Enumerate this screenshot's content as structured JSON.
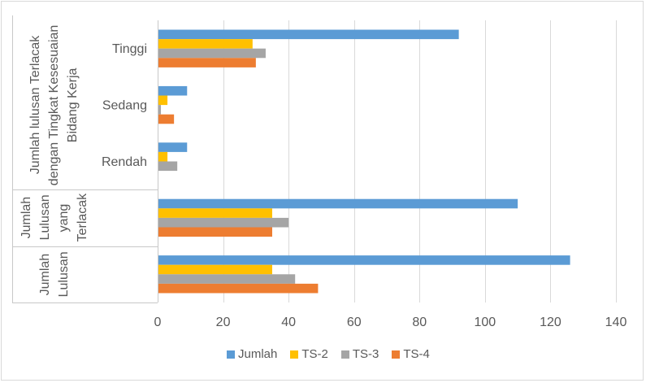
{
  "chart_data": {
    "type": "bar",
    "orientation": "horizontal",
    "category_groups": [
      {
        "label": "Jumlah lulusan Terlacak dengan Tingkat Kesesuaian Bidang Kerja",
        "categories": [
          "Tinggi",
          "Sedang",
          "Rendah"
        ]
      },
      {
        "label": "Jumlah Lulusan yang Terlacak"
      },
      {
        "label": "Jumlah Lulusan"
      }
    ],
    "series": [
      {
        "name": "Jumlah",
        "color": "#5B9BD5",
        "values": [
          92,
          9,
          9,
          110,
          126
        ]
      },
      {
        "name": "TS-2",
        "color": "#FFC000",
        "values": [
          29,
          3,
          3,
          35,
          35
        ]
      },
      {
        "name": "TS-3",
        "color": "#A5A5A5",
        "values": [
          33,
          1,
          6,
          40,
          42
        ]
      },
      {
        "name": "TS-4",
        "color": "#ED7D31",
        "values": [
          30,
          5,
          0,
          35,
          49
        ]
      }
    ],
    "x_axis": {
      "min": 0,
      "max": 140,
      "ticks": [
        0,
        20,
        40,
        60,
        80,
        100,
        120,
        140
      ]
    },
    "gridlines": "vertical",
    "legend": "bottom"
  }
}
